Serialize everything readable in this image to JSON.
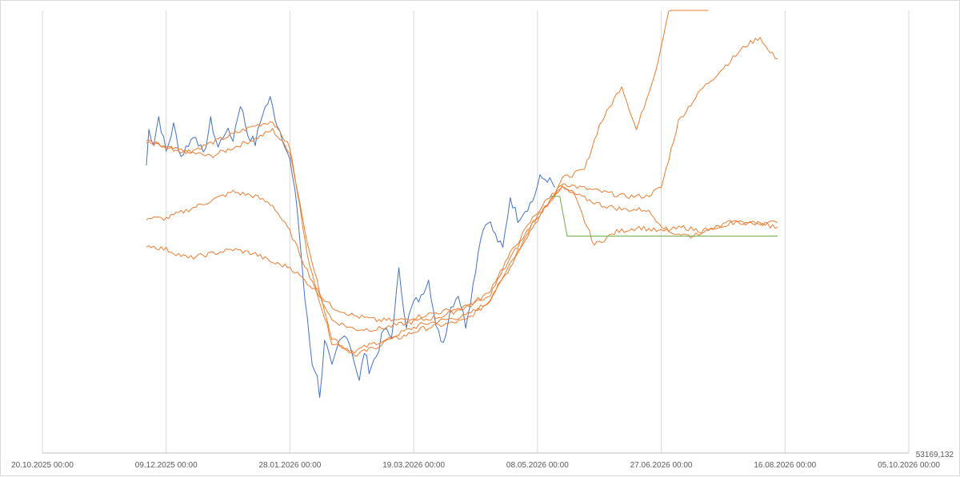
{
  "chart_data": {
    "type": "line",
    "title": "",
    "xlabel": "",
    "ylabel": "",
    "x_ticks": [
      "20.10.2025 00:00",
      "09.12.2025 00:00",
      "28.01.2026 00:00",
      "19.03.2026 00:00",
      "08.05.2026 00:00",
      "27.06.2026 00:00",
      "16.08.2026 00:00",
      "05.10.2026 00:00"
    ],
    "x_tick_dates": [
      "2025-10-20",
      "2025-12-09",
      "2026-01-28",
      "2026-03-19",
      "2026-05-08",
      "2026-06-27",
      "2026-08-16",
      "2026-10-05"
    ],
    "xlim": [
      "2025-10-20",
      "2026-10-05"
    ],
    "ylim": [
      0,
      100
    ],
    "y_axis_min_label": "53169,132",
    "grid": "vertical",
    "legend": "none",
    "series": [
      {
        "color": "#4472c4",
        "x": [
          "2025-12-01",
          "2025-12-02",
          "2025-12-04",
          "2025-12-06",
          "2025-12-09",
          "2025-12-12",
          "2025-12-15",
          "2025-12-18",
          "2025-12-21",
          "2025-12-24",
          "2025-12-27",
          "2025-12-30",
          "2026-01-02",
          "2026-01-05",
          "2026-01-08",
          "2026-01-11",
          "2026-01-14",
          "2026-01-17",
          "2026-01-20",
          "2026-01-23",
          "2026-01-26",
          "2026-01-28",
          "2026-01-31",
          "2026-02-03",
          "2026-02-06",
          "2026-02-08",
          "2026-02-09",
          "2026-02-11",
          "2026-02-14",
          "2026-02-17",
          "2026-02-20",
          "2026-02-23",
          "2026-02-25",
          "2026-02-27",
          "2026-03-01",
          "2026-03-04",
          "2026-03-07",
          "2026-03-10",
          "2026-03-13",
          "2026-03-16",
          "2026-03-19",
          "2026-03-22",
          "2026-03-25",
          "2026-03-28",
          "2026-03-31",
          "2026-04-03",
          "2026-04-06",
          "2026-04-09",
          "2026-04-12",
          "2026-04-15",
          "2026-04-18",
          "2026-04-21",
          "2026-04-24",
          "2026-04-27",
          "2026-04-30",
          "2026-05-03",
          "2026-05-06",
          "2026-05-09",
          "2026-05-12",
          "2026-05-15"
        ],
        "y": [
          65,
          73,
          70,
          76,
          68,
          74,
          67,
          70,
          72,
          67,
          75,
          69,
          73,
          71,
          79,
          72,
          70,
          77,
          80,
          74,
          70,
          66,
          55,
          35,
          20,
          18,
          12,
          26,
          19,
          25,
          27,
          21,
          16,
          23,
          19,
          22,
          28,
          26,
          41,
          29,
          34,
          35,
          40,
          28,
          25,
          33,
          36,
          29,
          38,
          49,
          53,
          49,
          46,
          58,
          53,
          55,
          57,
          62,
          62,
          60
        ]
      },
      {
        "color": "#ed7d31",
        "x": [
          "2025-12-01",
          "2025-12-09",
          "2025-12-18",
          "2025-12-27",
          "2026-01-05",
          "2026-01-14",
          "2026-01-21",
          "2026-01-28",
          "2026-02-05",
          "2026-02-14",
          "2026-02-23",
          "2026-03-04",
          "2026-03-13",
          "2026-03-22",
          "2026-03-31",
          "2026-04-09",
          "2026-04-18",
          "2026-04-27",
          "2026-05-06",
          "2026-05-13",
          "2026-05-18",
          "2026-05-27",
          "2026-06-02",
          "2026-06-11",
          "2026-06-17",
          "2026-06-25",
          "2026-06-30",
          "2026-07-03",
          "2026-07-07",
          "2026-07-10",
          "2026-07-14",
          "2026-07-16"
        ],
        "y": [
          70,
          69,
          68,
          67,
          69,
          71,
          73,
          68,
          45,
          26,
          22,
          24,
          27,
          29,
          30,
          31,
          34,
          42,
          52,
          57,
          62,
          64,
          74,
          83,
          73,
          87,
          100,
          102,
          103,
          104,
          104,
          104
        ]
      },
      {
        "color": "#ed7d31",
        "x": [
          "2025-12-01",
          "2025-12-09",
          "2025-12-18",
          "2025-12-27",
          "2026-01-05",
          "2026-01-14",
          "2026-01-21",
          "2026-01-28",
          "2026-02-05",
          "2026-02-14",
          "2026-02-23",
          "2026-03-04",
          "2026-03-13",
          "2026-03-22",
          "2026-03-31",
          "2026-04-09",
          "2026-04-18",
          "2026-04-27",
          "2026-05-06",
          "2026-05-13",
          "2026-05-18",
          "2026-05-25",
          "2026-06-03",
          "2026-06-12",
          "2026-06-21",
          "2026-06-27",
          "2026-07-04",
          "2026-07-13",
          "2026-07-22",
          "2026-07-31",
          "2026-08-06",
          "2026-08-09",
          "2026-08-13"
        ],
        "y": [
          71,
          69,
          68,
          70,
          72,
          74,
          75,
          69,
          42,
          25,
          23,
          25,
          26,
          28,
          29,
          30,
          34,
          43,
          51,
          57,
          61,
          60,
          59,
          58,
          58,
          60,
          75,
          82,
          87,
          92,
          94,
          91,
          89
        ]
      },
      {
        "color": "#ed7d31",
        "x": [
          "2025-12-01",
          "2025-12-09",
          "2025-12-18",
          "2025-12-27",
          "2026-01-05",
          "2026-01-14",
          "2026-01-21",
          "2026-01-28",
          "2026-02-05",
          "2026-02-14",
          "2026-02-23",
          "2026-03-04",
          "2026-03-13",
          "2026-03-22",
          "2026-03-31",
          "2026-04-09",
          "2026-04-18",
          "2026-04-27",
          "2026-05-06",
          "2026-05-13",
          "2026-05-18",
          "2026-05-23",
          "2026-05-31",
          "2026-06-09",
          "2026-06-18",
          "2026-06-27",
          "2026-07-06",
          "2026-07-15",
          "2026-07-24",
          "2026-08-02",
          "2026-08-13"
        ],
        "y": [
          53,
          53,
          55,
          57,
          59,
          58,
          56,
          50,
          40,
          30,
          28,
          28,
          29,
          30,
          31,
          33,
          36,
          45,
          53,
          58,
          60,
          58,
          47,
          50,
          51,
          50,
          51,
          50,
          52,
          52,
          52
        ]
      },
      {
        "color": "#ed7d31",
        "x": [
          "2025-12-01",
          "2025-12-09",
          "2025-12-18",
          "2025-12-27",
          "2026-01-05",
          "2026-01-14",
          "2026-01-21",
          "2026-01-28",
          "2026-02-05",
          "2026-02-14",
          "2026-02-23",
          "2026-03-04",
          "2026-03-13",
          "2026-03-22",
          "2026-03-31",
          "2026-04-09",
          "2026-04-18",
          "2026-04-27",
          "2026-05-06",
          "2026-05-13",
          "2026-05-18",
          "2026-05-25",
          "2026-06-03",
          "2026-06-12",
          "2026-06-21",
          "2026-06-30",
          "2026-07-09",
          "2026-07-18",
          "2026-07-27",
          "2026-08-05",
          "2026-08-13"
        ],
        "y": [
          47,
          46,
          44,
          45,
          46,
          45,
          43,
          42,
          38,
          33,
          31,
          30,
          30,
          31,
          32,
          33,
          35,
          44,
          52,
          57,
          60,
          58,
          56,
          55,
          55,
          50,
          49,
          51,
          52,
          52,
          51
        ]
      },
      {
        "color": "#70ad47",
        "x": [
          "2026-05-13",
          "2026-05-17",
          "2026-05-20",
          "2026-08-13"
        ],
        "y": [
          58,
          58,
          49,
          49
        ]
      }
    ]
  }
}
